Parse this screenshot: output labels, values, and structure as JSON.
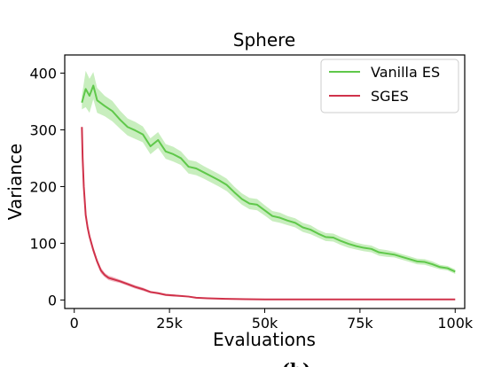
{
  "chart_data": {
    "type": "line",
    "title": "Sphere",
    "xlabel": "Evaluations",
    "ylabel": "Variance",
    "xlim": [
      -2500,
      102500
    ],
    "ylim": [
      -15,
      432
    ],
    "x_ticks": [
      0,
      25000,
      50000,
      75000,
      100000
    ],
    "x_tick_labels": [
      "0",
      "25k",
      "50k",
      "75k",
      "100k"
    ],
    "y_ticks": [
      0,
      100,
      200,
      300,
      400
    ],
    "y_tick_labels": [
      "0",
      "100",
      "200",
      "300",
      "400"
    ],
    "grid": false,
    "legend_position": "top-right",
    "caption": "(b)",
    "series": [
      {
        "name": "Vanilla ES",
        "color": "#5fc84a",
        "band_color": "#b5e8a8",
        "x": [
          2000,
          3000,
          4000,
          5000,
          6000,
          8000,
          10000,
          12000,
          14000,
          16000,
          18000,
          20000,
          22000,
          24000,
          26000,
          28000,
          30000,
          32000,
          34000,
          36000,
          38000,
          40000,
          42000,
          44000,
          46000,
          48000,
          50000,
          52000,
          54000,
          56000,
          58000,
          60000,
          62000,
          64000,
          66000,
          68000,
          70000,
          72000,
          74000,
          76000,
          78000,
          80000,
          82000,
          84000,
          86000,
          88000,
          90000,
          92000,
          94000,
          96000,
          98000,
          100000
        ],
        "y": [
          348,
          372,
          360,
          378,
          352,
          342,
          333,
          318,
          305,
          299,
          292,
          271,
          282,
          262,
          257,
          250,
          235,
          232,
          225,
          218,
          211,
          203,
          190,
          178,
          170,
          168,
          158,
          148,
          145,
          140,
          136,
          128,
          124,
          117,
          111,
          110,
          104,
          99,
          95,
          92,
          90,
          84,
          82,
          80,
          76,
          72,
          68,
          67,
          63,
          58,
          56,
          50
        ],
        "band_halfwidth": [
          12,
          32,
          30,
          24,
          22,
          18,
          18,
          16,
          15,
          15,
          14,
          14,
          14,
          13,
          13,
          12,
          12,
          12,
          11,
          11,
          11,
          11,
          10,
          10,
          10,
          10,
          9,
          9,
          9,
          8,
          8,
          8,
          8,
          7,
          7,
          7,
          7,
          7,
          6,
          6,
          6,
          6,
          6,
          5,
          5,
          5,
          5,
          5,
          5,
          4,
          4,
          4
        ]
      },
      {
        "name": "SGES",
        "color": "#d0324a",
        "band_color": "#eea3b1",
        "x": [
          2000,
          2200,
          2500,
          3000,
          3500,
          4000,
          5000,
          6000,
          7000,
          8000,
          9000,
          10000,
          12000,
          14000,
          16000,
          18000,
          20000,
          22000,
          24000,
          26000,
          28000,
          30000,
          32000,
          35000,
          40000,
          45000,
          50000,
          60000,
          70000,
          80000,
          90000,
          100000
        ],
        "y": [
          305,
          250,
          200,
          150,
          128,
          112,
          88,
          68,
          52,
          44,
          39,
          37,
          33,
          28,
          23,
          19,
          14,
          12,
          9,
          8,
          7,
          6,
          4,
          3,
          2,
          1.5,
          1,
          1,
          1,
          1,
          1,
          1
        ],
        "band_halfwidth": [
          4,
          6,
          8,
          8,
          6,
          6,
          6,
          5,
          5,
          4,
          4,
          4,
          3,
          3,
          3,
          3,
          2,
          2,
          2,
          2,
          1,
          1,
          1,
          1,
          1,
          1,
          0.5,
          0.5,
          0.5,
          0.5,
          0.5,
          0.5
        ]
      }
    ]
  }
}
